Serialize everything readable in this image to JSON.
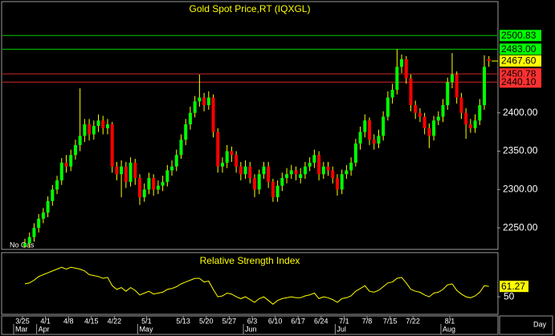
{
  "chart_data": [
    {
      "type": "candlestick",
      "title": "Gold  Spot Price,RT  (IQXGL)",
      "note": "No Gas",
      "x_unit": "Day",
      "categories": [
        "3/25",
        null,
        null,
        null,
        null,
        "4/1",
        null,
        null,
        null,
        null,
        "4/8",
        null,
        null,
        null,
        null,
        "4/15",
        null,
        null,
        null,
        null,
        "4/22",
        null,
        null,
        null,
        null,
        null,
        null,
        "5/1",
        null,
        null,
        null,
        null,
        null,
        null,
        null,
        "5/13",
        null,
        null,
        null,
        null,
        "5/20",
        null,
        null,
        null,
        null,
        "5/27",
        null,
        null,
        null,
        null,
        "6/3",
        null,
        null,
        null,
        null,
        "6/10",
        null,
        null,
        null,
        null,
        "6/17",
        null,
        null,
        null,
        null,
        "6/24",
        null,
        null,
        null,
        null,
        "7/1",
        null,
        null,
        null,
        null,
        "7/8",
        null,
        null,
        null,
        null,
        "7/15",
        null,
        null,
        null,
        null,
        "7/22",
        null,
        null,
        null,
        null,
        null,
        null,
        null,
        "8/1",
        null,
        null,
        null,
        null,
        null,
        null,
        null,
        null
      ],
      "month_ticks": [
        {
          "value": 0,
          "label": "Mar"
        },
        {
          "value": 5,
          "label": "Apr"
        },
        {
          "value": 27,
          "label": "May"
        },
        {
          "value": 50,
          "label": "Jun"
        },
        {
          "value": 70,
          "label": "Jul"
        },
        {
          "value": 93,
          "label": "Aug"
        }
      ],
      "open": [
        2226,
        2230,
        2238,
        2250,
        2262,
        2270,
        2285,
        2300,
        2312,
        2335,
        2330,
        2345,
        2358,
        2370,
        2385,
        2372,
        2383,
        2390,
        2380,
        2385,
        2330,
        2320,
        2330,
        2310,
        2335,
        2315,
        2290,
        2300,
        2315,
        2300,
        2305,
        2310,
        2325,
        2330,
        2345,
        2365,
        2385,
        2400,
        2415,
        2420,
        2410,
        2420,
        2375,
        2330,
        2335,
        2350,
        2345,
        2330,
        2320,
        2330,
        2315,
        2300,
        2320,
        2330,
        2310,
        2290,
        2305,
        2315,
        2320,
        2325,
        2315,
        2320,
        2330,
        2335,
        2345,
        2320,
        2330,
        2325,
        2315,
        2300,
        2320,
        2325,
        2335,
        2360,
        2375,
        2390,
        2365,
        2360,
        2370,
        2395,
        2420,
        2430,
        2460,
        2470,
        2445,
        2410,
        2400,
        2395,
        2380,
        2370,
        2390,
        2395,
        2410,
        2440,
        2450,
        2420,
        2400,
        2385,
        2380,
        2390,
        2410,
        2470
      ],
      "high": [
        2236,
        2244,
        2256,
        2268,
        2276,
        2291,
        2306,
        2318,
        2341,
        2345,
        2352,
        2365,
        2432,
        2392,
        2392,
        2390,
        2398,
        2396,
        2392,
        2388,
        2336,
        2338,
        2336,
        2342,
        2340,
        2320,
        2308,
        2322,
        2320,
        2312,
        2318,
        2332,
        2338,
        2352,
        2372,
        2392,
        2408,
        2422,
        2450,
        2426,
        2428,
        2424,
        2380,
        2342,
        2358,
        2356,
        2350,
        2336,
        2338,
        2336,
        2320,
        2326,
        2336,
        2336,
        2314,
        2312,
        2322,
        2328,
        2332,
        2330,
        2328,
        2336,
        2342,
        2352,
        2350,
        2336,
        2336,
        2330,
        2320,
        2326,
        2332,
        2342,
        2366,
        2382,
        2398,
        2394,
        2372,
        2378,
        2402,
        2428,
        2438,
        2483,
        2476,
        2474,
        2450,
        2416,
        2406,
        2400,
        2386,
        2396,
        2402,
        2418,
        2446,
        2478,
        2454,
        2426,
        2406,
        2392,
        2398,
        2418,
        2475,
        2474
      ],
      "low": [
        2224,
        2224,
        2232,
        2244,
        2256,
        2264,
        2279,
        2294,
        2306,
        2322,
        2324,
        2339,
        2350,
        2362,
        2364,
        2365,
        2375,
        2372,
        2372,
        2322,
        2312,
        2290,
        2302,
        2304,
        2306,
        2280,
        2284,
        2294,
        2292,
        2294,
        2298,
        2304,
        2318,
        2324,
        2340,
        2358,
        2378,
        2394,
        2408,
        2402,
        2404,
        2368,
        2322,
        2322,
        2328,
        2336,
        2322,
        2312,
        2314,
        2308,
        2290,
        2294,
        2314,
        2302,
        2284,
        2284,
        2298,
        2308,
        2314,
        2312,
        2308,
        2314,
        2324,
        2328,
        2312,
        2314,
        2318,
        2308,
        2292,
        2294,
        2314,
        2318,
        2330,
        2352,
        2368,
        2358,
        2352,
        2354,
        2364,
        2390,
        2412,
        2424,
        2452,
        2438,
        2402,
        2392,
        2388,
        2372,
        2354,
        2364,
        2384,
        2388,
        2404,
        2432,
        2412,
        2392,
        2366,
        2374,
        2374,
        2384,
        2404,
        2460
      ],
      "close": [
        2230,
        2238,
        2250,
        2262,
        2270,
        2285,
        2300,
        2312,
        2335,
        2330,
        2345,
        2358,
        2370,
        2385,
        2372,
        2383,
        2390,
        2380,
        2385,
        2330,
        2320,
        2330,
        2310,
        2335,
        2315,
        2290,
        2300,
        2315,
        2300,
        2305,
        2310,
        2325,
        2330,
        2345,
        2365,
        2385,
        2400,
        2415,
        2420,
        2410,
        2420,
        2375,
        2330,
        2335,
        2350,
        2345,
        2330,
        2320,
        2330,
        2315,
        2300,
        2320,
        2330,
        2310,
        2290,
        2305,
        2315,
        2320,
        2325,
        2320,
        2320,
        2330,
        2335,
        2345,
        2320,
        2330,
        2325,
        2315,
        2300,
        2320,
        2325,
        2335,
        2360,
        2375,
        2390,
        2365,
        2360,
        2370,
        2395,
        2420,
        2430,
        2460,
        2470,
        2445,
        2410,
        2400,
        2395,
        2380,
        2370,
        2390,
        2395,
        2410,
        2440,
        2450,
        2420,
        2400,
        2385,
        2380,
        2390,
        2410,
        2460,
        2467.6
      ],
      "up_color": "#00ff00",
      "down_color": "#ff0000",
      "wick_color": "#ffff00",
      "ylim": [
        2223,
        2544
      ],
      "yticks": [
        {
          "value": 2250,
          "label": "2250.00"
        },
        {
          "value": 2300,
          "label": "2300.00"
        },
        {
          "value": 2350,
          "label": "2350.00"
        },
        {
          "value": 2400,
          "label": "2400.00"
        }
      ],
      "levels": [
        {
          "value": 2500.83,
          "label": "2500.83",
          "color": "#00ff00"
        },
        {
          "value": 2483,
          "label": "2483.00",
          "color": "#00ff00"
        },
        {
          "value": 2450.78,
          "label": "2450.78",
          "color": "#ff3030"
        },
        {
          "value": 2440.1,
          "label": "2440.10",
          "color": "#ff3030"
        }
      ],
      "current": {
        "value": 2467.6,
        "label": "2467.60",
        "color": "#ffff00"
      },
      "grid": false
    },
    {
      "type": "line",
      "title": "Relative  Strength  Index",
      "color": "#ffff00",
      "values": [
        64,
        65,
        68,
        72,
        74,
        76,
        78,
        80,
        82,
        80,
        82,
        81,
        80,
        78,
        74,
        73,
        72,
        70,
        71,
        62,
        58,
        60,
        56,
        60,
        57,
        52,
        54,
        56,
        53,
        54,
        55,
        58,
        59,
        61,
        64,
        66,
        68,
        70,
        70,
        66,
        67,
        58,
        50,
        51,
        54,
        53,
        50,
        48,
        50,
        47,
        44,
        48,
        50,
        46,
        42,
        46,
        48,
        49,
        50,
        49,
        49,
        51,
        52,
        54,
        48,
        50,
        49,
        47,
        44,
        48,
        49,
        51,
        56,
        59,
        62,
        56,
        55,
        57,
        61,
        65,
        66,
        70,
        71,
        65,
        58,
        56,
        55,
        52,
        50,
        54,
        55,
        58,
        63,
        64,
        57,
        53,
        50,
        49,
        51,
        55,
        62,
        61.27
      ],
      "ylim": [
        31,
        97
      ],
      "yticks": [
        50
      ],
      "grid": false
    }
  ]
}
